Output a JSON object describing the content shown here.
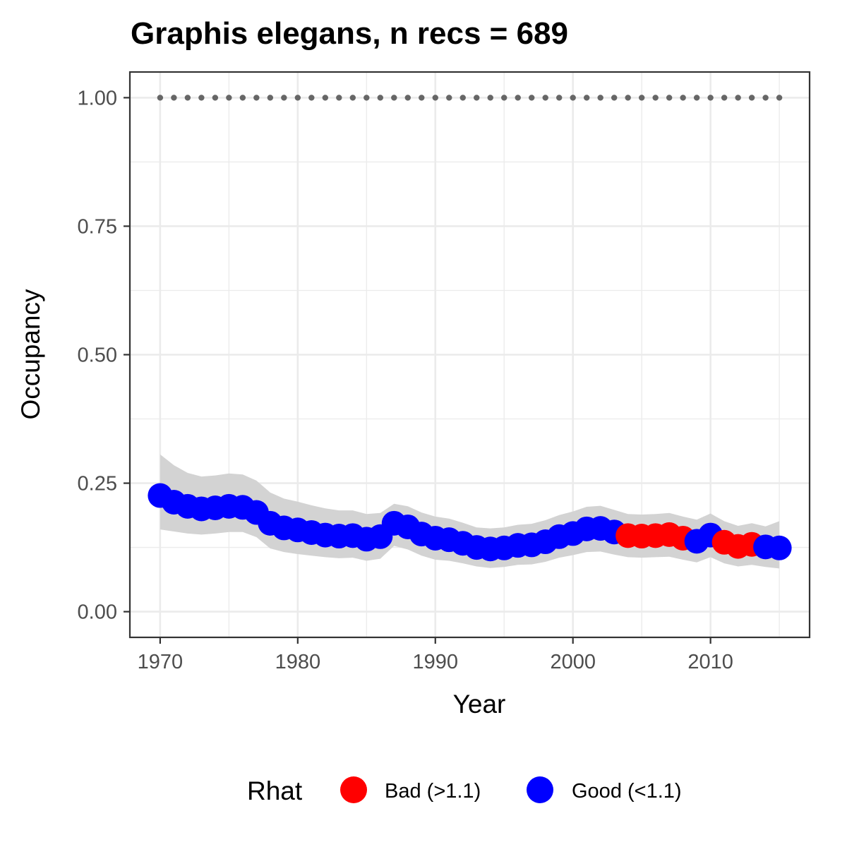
{
  "chart_data": {
    "type": "line",
    "title": "Graphis elegans, n recs = 689",
    "xlabel": "Year",
    "ylabel": "Occupancy",
    "xlim": [
      1967.8,
      2017.2
    ],
    "ylim": [
      -0.05,
      1.05
    ],
    "x_ticks": [
      1970,
      1980,
      1990,
      2000,
      2010
    ],
    "x_tick_labels": [
      "1970",
      "1980",
      "1990",
      "2000",
      "2010"
    ],
    "y_ticks": [
      0.0,
      0.25,
      0.5,
      0.75,
      1.0
    ],
    "y_tick_labels": [
      "0.00",
      "0.25",
      "0.50",
      "0.75",
      "1.00"
    ],
    "grid": true,
    "legend": {
      "title": "Rhat",
      "position": "bottom",
      "entries": [
        {
          "label": "Bad (>1.1)",
          "color": "#ff0000"
        },
        {
          "label": "Good (<1.1)",
          "color": "#0000ff"
        }
      ]
    },
    "colors": {
      "bad": "#ff0000",
      "good": "#0000ff",
      "ribbon": "#d3d3d3",
      "reference": "#666666"
    },
    "reference_line": {
      "y": 1.0,
      "style": "dotted"
    },
    "x": [
      1970,
      1971,
      1972,
      1973,
      1974,
      1975,
      1976,
      1977,
      1978,
      1979,
      1980,
      1981,
      1982,
      1983,
      1984,
      1985,
      1986,
      1987,
      1988,
      1989,
      1990,
      1991,
      1992,
      1993,
      1994,
      1995,
      1996,
      1997,
      1998,
      1999,
      2000,
      2001,
      2002,
      2003,
      2004,
      2005,
      2006,
      2007,
      2008,
      2009,
      2010,
      2011,
      2012,
      2013,
      2014,
      2015
    ],
    "series": [
      {
        "values": [
          0.226,
          0.213,
          0.205,
          0.2,
          0.202,
          0.205,
          0.203,
          0.193,
          0.172,
          0.163,
          0.159,
          0.154,
          0.149,
          0.147,
          0.148,
          0.141,
          0.146,
          0.172,
          0.165,
          0.151,
          0.143,
          0.14,
          0.133,
          0.125,
          0.122,
          0.124,
          0.129,
          0.13,
          0.136,
          0.146,
          0.152,
          0.161,
          0.162,
          0.155,
          0.148,
          0.147,
          0.148,
          0.15,
          0.143,
          0.137,
          0.149,
          0.135,
          0.127,
          0.131,
          0.126,
          0.124
        ],
        "lower": [
          0.16,
          0.156,
          0.152,
          0.15,
          0.152,
          0.155,
          0.155,
          0.145,
          0.123,
          0.116,
          0.112,
          0.109,
          0.106,
          0.104,
          0.105,
          0.099,
          0.103,
          0.128,
          0.121,
          0.109,
          0.101,
          0.099,
          0.094,
          0.088,
          0.085,
          0.087,
          0.091,
          0.092,
          0.097,
          0.105,
          0.11,
          0.116,
          0.117,
          0.111,
          0.106,
          0.105,
          0.106,
          0.107,
          0.101,
          0.096,
          0.106,
          0.094,
          0.088,
          0.091,
          0.087,
          0.084
        ],
        "upper": [
          0.306,
          0.285,
          0.27,
          0.263,
          0.265,
          0.269,
          0.267,
          0.255,
          0.232,
          0.22,
          0.214,
          0.207,
          0.201,
          0.197,
          0.197,
          0.19,
          0.192,
          0.21,
          0.205,
          0.193,
          0.185,
          0.181,
          0.173,
          0.164,
          0.162,
          0.164,
          0.169,
          0.171,
          0.178,
          0.188,
          0.195,
          0.204,
          0.206,
          0.198,
          0.19,
          0.189,
          0.19,
          0.192,
          0.185,
          0.179,
          0.191,
          0.176,
          0.167,
          0.172,
          0.166,
          0.176
        ],
        "rhat": [
          "good",
          "good",
          "good",
          "good",
          "good",
          "good",
          "good",
          "good",
          "good",
          "good",
          "good",
          "good",
          "good",
          "good",
          "good",
          "good",
          "good",
          "good",
          "good",
          "good",
          "good",
          "good",
          "good",
          "good",
          "good",
          "good",
          "good",
          "good",
          "good",
          "good",
          "good",
          "good",
          "good",
          "good",
          "bad",
          "bad",
          "bad",
          "bad",
          "bad",
          "good",
          "good",
          "bad",
          "bad",
          "bad",
          "good",
          "good"
        ]
      }
    ]
  }
}
